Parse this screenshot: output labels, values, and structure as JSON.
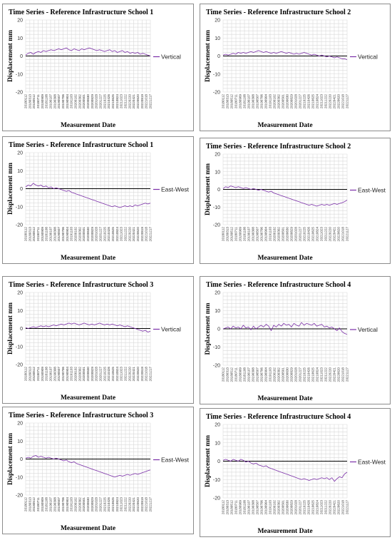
{
  "colors": {
    "series": "#7b2fa8"
  },
  "chart_data": [
    {
      "type": "line",
      "title": "Time Series - Reference Infrastructure School 1",
      "xlabel": "Measurement Date",
      "ylabel": "Displacement  mm",
      "ylim": [
        -20,
        20
      ],
      "yticks": [
        20,
        10,
        0,
        -10,
        -20
      ],
      "grid": true,
      "legend_position": "right",
      "series": [
        {
          "name": "Vertical",
          "color": "#7b2fa8",
          "values": [
            0.5,
            1.5,
            2,
            1,
            2,
            2.5,
            2,
            3,
            2.5,
            3,
            3.5,
            3,
            3.5,
            4,
            3.5,
            4,
            4.5,
            3.5,
            3,
            4,
            3.5,
            3,
            4,
            3.5,
            4,
            4.5,
            4,
            3.5,
            3,
            3.5,
            3,
            2.5,
            3,
            3.5,
            2.5,
            3,
            2,
            2.5,
            3,
            2,
            2.5,
            1.5,
            2,
            1.5,
            2,
            1,
            1.5,
            1,
            0.5,
            0
          ]
        }
      ]
    },
    {
      "type": "line",
      "title": "Time Series - Reference Infrastructure School 2",
      "xlabel": "Measurement Date",
      "ylabel": "Displacement  mm",
      "ylim": [
        -20,
        20
      ],
      "yticks": [
        20,
        10,
        0,
        -10,
        -20
      ],
      "grid": true,
      "legend_position": "right",
      "series": [
        {
          "name": "Vertical",
          "color": "#7b2fa8",
          "values": [
            0.5,
            1,
            0.5,
            1,
            1.5,
            1,
            2,
            1.5,
            2,
            1.5,
            2,
            2.5,
            2,
            2.5,
            3,
            2.5,
            2,
            2.5,
            2,
            1.5,
            2,
            1.5,
            2,
            2.5,
            2,
            1.5,
            2,
            1.5,
            1,
            1.5,
            1,
            1.5,
            2,
            1.5,
            1,
            0.5,
            1,
            0.5,
            0,
            0.5,
            0,
            -0.5,
            0,
            -0.5,
            -1,
            -0.5,
            -1,
            -1.5,
            -1.5,
            -2
          ]
        }
      ]
    },
    {
      "type": "line",
      "title": "Time Series - Reference Infrastructure School 1",
      "xlabel": "Measurement Date",
      "ylabel": "Displacement  mm",
      "ylim": [
        -20,
        20
      ],
      "yticks": [
        20,
        10,
        0,
        -10,
        -20
      ],
      "grid": true,
      "legend_position": "right",
      "series": [
        {
          "name": "East-West",
          "color": "#7b2fa8",
          "values": [
            1,
            2,
            1.5,
            3,
            2,
            1.5,
            2,
            1,
            1.5,
            0.5,
            1,
            0,
            0.5,
            0,
            -0.5,
            -1,
            -1.5,
            -1,
            -2,
            -2.5,
            -3,
            -3.5,
            -4,
            -4.5,
            -5,
            -5.5,
            -6,
            -6.5,
            -7,
            -7.5,
            -8,
            -8.5,
            -9,
            -9.5,
            -10,
            -9.5,
            -10,
            -10.5,
            -10,
            -9.5,
            -10,
            -9.5,
            -10,
            -9,
            -9.5,
            -9,
            -8.5,
            -8,
            -8.5,
            -8
          ]
        }
      ]
    },
    {
      "type": "line",
      "title": "Time Series - Reference Infrastructure School 2",
      "xlabel": "Measurement Date",
      "ylabel": "Displacement  mm",
      "ylim": [
        -20,
        20
      ],
      "yticks": [
        20,
        10,
        0,
        -10,
        -20
      ],
      "grid": true,
      "legend_position": "right",
      "series": [
        {
          "name": "East-West",
          "color": "#7b2fa8",
          "values": [
            0.5,
            1.5,
            1,
            2,
            1.5,
            1,
            1.5,
            1,
            0.5,
            1,
            0.5,
            0,
            0.5,
            0,
            -0.5,
            0,
            -0.5,
            -1,
            -1.5,
            -1,
            -2,
            -2.5,
            -3,
            -3.5,
            -4,
            -4.5,
            -5,
            -5.5,
            -6,
            -6.5,
            -7,
            -7.5,
            -8,
            -8.5,
            -9,
            -8.5,
            -9,
            -9.5,
            -9,
            -8.5,
            -9,
            -8.5,
            -9,
            -8.5,
            -8,
            -8.5,
            -8,
            -7.5,
            -7,
            -6
          ]
        }
      ]
    },
    {
      "type": "line",
      "title": "Time Series - Reference Infrastructure School 3",
      "xlabel": "Measurement Date",
      "ylabel": "Displacement  mm",
      "ylim": [
        -20,
        20
      ],
      "yticks": [
        20,
        10,
        0,
        -10,
        -20
      ],
      "grid": true,
      "legend_position": "right",
      "series": [
        {
          "name": "Vertical",
          "color": "#7b2fa8",
          "values": [
            0.5,
            0,
            0.5,
            1,
            0.5,
            1,
            1.5,
            1,
            1.5,
            1,
            1.5,
            2,
            1.5,
            2,
            2.5,
            2,
            2.5,
            3,
            2.5,
            3,
            2.5,
            2,
            2.5,
            3,
            2.5,
            2,
            2.5,
            2,
            2.5,
            3,
            2.5,
            2,
            2.5,
            2,
            2.5,
            2,
            1.5,
            2,
            1.5,
            1,
            1.5,
            1,
            0.5,
            0,
            -0.5,
            -1,
            -1.5,
            -1,
            -2,
            -1.5
          ]
        }
      ]
    },
    {
      "type": "line",
      "title": "Time Series - Reference Infrastructure School  4",
      "xlabel": "Measurement Date",
      "ylabel": "Displacement  mm",
      "ylim": [
        -20,
        20
      ],
      "yticks": [
        20,
        10,
        0,
        -10,
        -20
      ],
      "grid": true,
      "legend_position": "right",
      "series": [
        {
          "name": "Vertical",
          "color": "#7b2fa8",
          "values": [
            0,
            0.5,
            1,
            0,
            1.5,
            0.5,
            1,
            0,
            2,
            0.5,
            1,
            -0.5,
            1.5,
            0,
            1,
            2,
            1,
            2.5,
            1.5,
            -1,
            2,
            1,
            2.5,
            1.5,
            3,
            2,
            2.5,
            1,
            3,
            2,
            1.5,
            3.5,
            2,
            3,
            2.5,
            2,
            3,
            1.5,
            2,
            2.5,
            1,
            1.5,
            0.5,
            1,
            0,
            -1,
            0.5,
            -1.5,
            -2.5,
            -3
          ]
        }
      ]
    },
    {
      "type": "line",
      "title": "Time Series - Reference Infrastructure School 3",
      "xlabel": "Measurement Date",
      "ylabel": "Displacement  mm",
      "ylim": [
        -20,
        20
      ],
      "yticks": [
        20,
        10,
        0,
        -10,
        -20
      ],
      "grid": true,
      "legend_position": "right",
      "series": [
        {
          "name": "East-West",
          "color": "#7b2fa8",
          "values": [
            0.5,
            1,
            0.5,
            1.5,
            2,
            1,
            1.5,
            1,
            0.5,
            1,
            0.5,
            0,
            0.5,
            0,
            -0.5,
            -1,
            -0.5,
            -1.5,
            -2,
            -1.5,
            -2.5,
            -3,
            -3.5,
            -4,
            -4.5,
            -5,
            -5.5,
            -6,
            -6.5,
            -7,
            -7.5,
            -8,
            -8.5,
            -9,
            -9.5,
            -10,
            -9.5,
            -9,
            -9.5,
            -9,
            -8.5,
            -9,
            -8.5,
            -8,
            -8.5,
            -8,
            -7.5,
            -7,
            -6.5,
            -6
          ]
        }
      ]
    },
    {
      "type": "line",
      "title": "Time Series - Reference Infrastructure School  4",
      "xlabel": "Measurement Date",
      "ylabel": "Displacement  mm",
      "ylim": [
        -20,
        20
      ],
      "yticks": [
        20,
        10,
        0,
        -10,
        -20
      ],
      "grid": true,
      "legend_position": "right",
      "series": [
        {
          "name": "East-West",
          "color": "#7b2fa8",
          "values": [
            0.5,
            1,
            0.5,
            0,
            1,
            0.5,
            0,
            1,
            0.5,
            -0.5,
            0,
            -1,
            -1.5,
            -1,
            -2,
            -2.5,
            -3,
            -2.5,
            -3.5,
            -4,
            -4.5,
            -5,
            -5.5,
            -6,
            -6.5,
            -7,
            -7.5,
            -8,
            -8.5,
            -9,
            -9.5,
            -10,
            -9.5,
            -10,
            -10.5,
            -10,
            -9.5,
            -10,
            -9.5,
            -9,
            -9.5,
            -9,
            -10,
            -9,
            -11,
            -9.5,
            -8.5,
            -9,
            -7,
            -6
          ]
        }
      ]
    }
  ],
  "x_tick_labels": [
    "20180112",
    "20180313",
    "20180512",
    "20180711",
    "20180909",
    "20181108",
    "20190107",
    "20190308",
    "20190507",
    "20190706",
    "20190904",
    "20191103",
    "20200102",
    "20200302",
    "20200501",
    "20200630",
    "20200829",
    "20201028",
    "20201227",
    "20210225",
    "20210426",
    "20210625",
    "20210824",
    "20211023",
    "20211222",
    "20220220",
    "20220421",
    "20220620",
    "20220819",
    "20221018",
    "20221217"
  ],
  "x_tick_labels_short": [
    "20180112",
    "20180313",
    "20180512",
    "20180711",
    "20180909",
    "20181108",
    "20190107",
    "20190308",
    "20190507",
    "20190706",
    "20190904",
    "20191103",
    "20200102",
    "20200302",
    "20200501",
    "20200630",
    "20200829",
    "20201028",
    "20201227",
    "20210225",
    "20210426",
    "20210625",
    "20210824",
    "20211023",
    "20211222",
    "20220220",
    "20220421",
    "20220620",
    "20221018",
    "20221127"
  ]
}
